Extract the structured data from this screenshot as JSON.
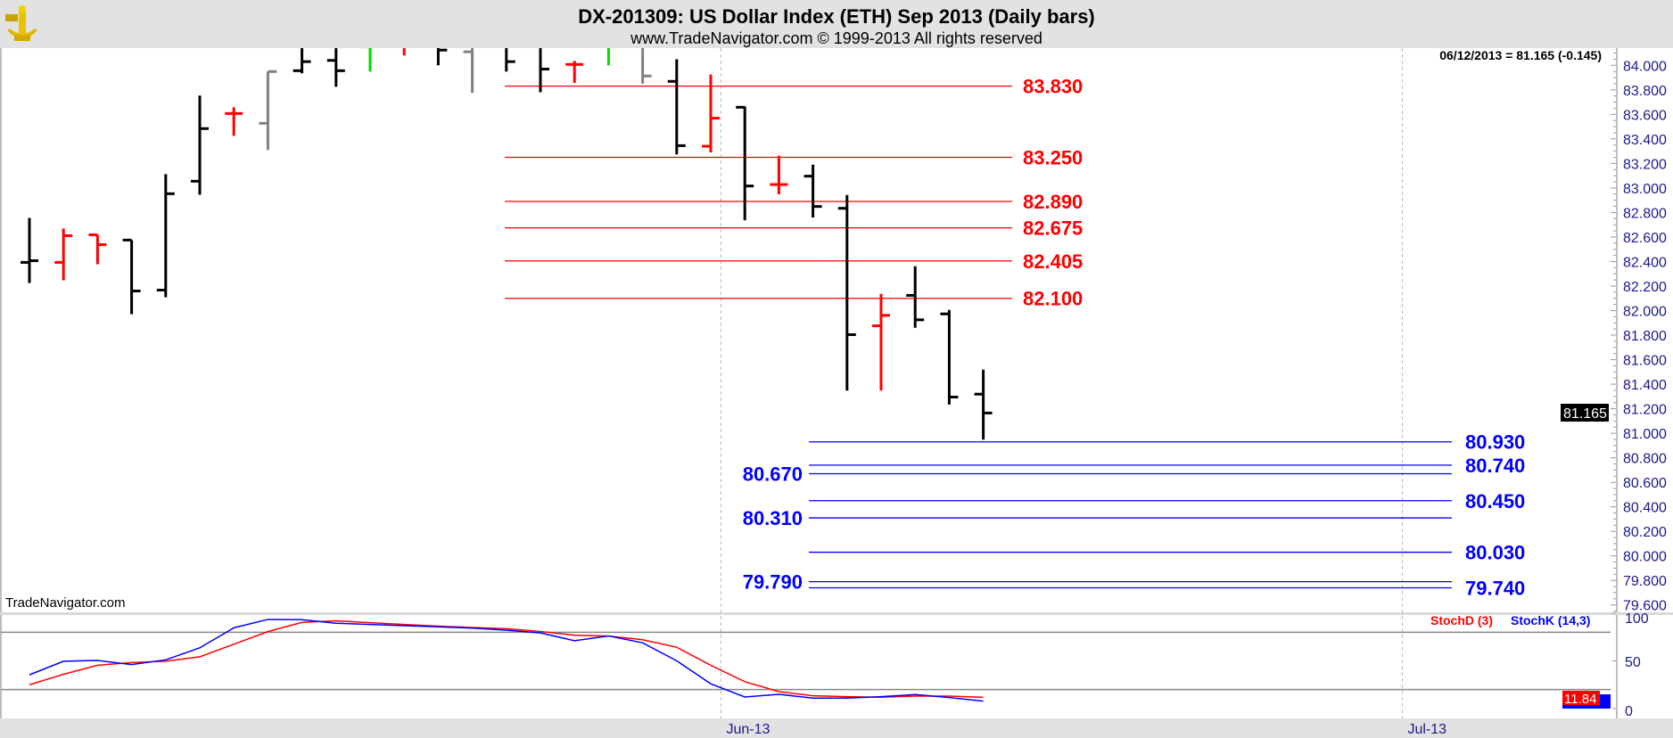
{
  "header": {
    "title": "DX-201309:  US Dollar Index (ETH) Sep 2013  (Daily bars)",
    "subtitle": "www.TradeNavigator.com © 1999-2013 All rights reserved",
    "logo": "sextant-logo"
  },
  "quote_readout": "06/12/2013 = 81.165 (-0.145)",
  "watermark": "TradeNavigator.com",
  "last_price_marker": "81.165",
  "colors": {
    "up": "#000000",
    "down": "#ff0000",
    "neutral": "#808080",
    "green": "#00dd00",
    "resistance": "#ff0000",
    "support": "#0000ff",
    "stoch_d": "#ff0000",
    "stoch_k": "#0000ff"
  },
  "chart_data": [
    {
      "type": "ohlc",
      "title": "DX-201309:  US Dollar Index (ETH) Sep 2013  (Daily bars)",
      "ylim": [
        79.54,
        84.14
      ],
      "yticks": [
        "84.000",
        "83.800",
        "83.600",
        "83.400",
        "83.200",
        "83.000",
        "82.800",
        "82.600",
        "82.400",
        "82.200",
        "82.000",
        "81.800",
        "81.600",
        "81.400",
        "81.200",
        "81.000",
        "80.800",
        "80.600",
        "80.400",
        "80.200",
        "80.000",
        "79.800",
        "79.600"
      ],
      "xticks": [
        {
          "label": "Jun-13",
          "index": 20.3
        },
        {
          "label": "Jul-13",
          "index": 40.3
        }
      ],
      "grid": false,
      "bars": [
        {
          "o": 82.393,
          "h": 82.756,
          "l": 82.225,
          "c": 82.407,
          "color": "black"
        },
        {
          "o": 82.393,
          "h": 82.669,
          "l": 82.247,
          "c": 82.611,
          "color": "red"
        },
        {
          "o": 82.618,
          "h": 82.618,
          "l": 82.378,
          "c": 82.538,
          "color": "red"
        },
        {
          "o": 82.575,
          "h": 82.575,
          "l": 81.971,
          "c": 82.16,
          "color": "black"
        },
        {
          "o": 82.167,
          "h": 83.113,
          "l": 82.109,
          "c": 82.953,
          "color": "black"
        },
        {
          "o": 83.055,
          "h": 83.753,
          "l": 82.945,
          "c": 83.484,
          "color": "black"
        },
        {
          "o": 83.607,
          "h": 83.658,
          "l": 83.425,
          "c": 83.607,
          "color": "red"
        },
        {
          "o": 83.527,
          "h": 83.949,
          "l": 83.31,
          "c": 83.949,
          "color": "gray"
        },
        {
          "o": 83.956,
          "h": 84.3,
          "l": 83.935,
          "c": 84.03,
          "color": "black"
        },
        {
          "o": 84.04,
          "h": 84.3,
          "l": 83.825,
          "c": 83.956,
          "color": "black"
        },
        {
          "o": 84.15,
          "h": 84.3,
          "l": 83.949,
          "c": 84.2,
          "color": "green"
        },
        {
          "o": 84.2,
          "h": 84.3,
          "l": 84.08,
          "c": 84.2,
          "color": "red"
        },
        {
          "o": 84.2,
          "h": 84.3,
          "l": 84.0,
          "c": 84.124,
          "color": "black"
        },
        {
          "o": 84.11,
          "h": 84.3,
          "l": 83.775,
          "c": 84.2,
          "color": "gray"
        },
        {
          "o": 84.2,
          "h": 84.3,
          "l": 83.949,
          "c": 84.03,
          "color": "black"
        },
        {
          "o": 84.2,
          "h": 84.3,
          "l": 83.78,
          "c": 83.969,
          "color": "black"
        },
        {
          "o": 84.007,
          "h": 84.036,
          "l": 83.857,
          "c": 84.007,
          "color": "red"
        },
        {
          "o": 84.2,
          "h": 84.3,
          "l": 84.0,
          "c": 84.2,
          "color": "green"
        },
        {
          "o": 84.2,
          "h": 84.3,
          "l": 83.85,
          "c": 83.913,
          "color": "gray"
        },
        {
          "o": 83.869,
          "h": 84.05,
          "l": 83.273,
          "c": 83.345,
          "color": "black"
        },
        {
          "o": 83.34,
          "h": 83.925,
          "l": 83.29,
          "c": 83.569,
          "color": "red"
        },
        {
          "o": 83.658,
          "h": 83.665,
          "l": 82.737,
          "c": 83.016,
          "color": "black"
        },
        {
          "o": 83.028,
          "h": 83.263,
          "l": 82.948,
          "c": 83.028,
          "color": "red"
        },
        {
          "o": 83.096,
          "h": 83.19,
          "l": 82.759,
          "c": 82.849,
          "color": "black"
        },
        {
          "o": 82.834,
          "h": 82.943,
          "l": 81.348,
          "c": 81.804,
          "color": "black"
        },
        {
          "o": 81.876,
          "h": 82.136,
          "l": 81.348,
          "c": 81.961,
          "color": "red"
        },
        {
          "o": 82.124,
          "h": 82.361,
          "l": 81.86,
          "c": 81.925,
          "color": "black"
        },
        {
          "o": 81.973,
          "h": 82.005,
          "l": 81.234,
          "c": 81.295,
          "color": "black"
        },
        {
          "o": 81.319,
          "h": 81.518,
          "l": 80.948,
          "c": 81.165,
          "color": "black"
        }
      ],
      "resistance_levels": [
        {
          "value": 83.83,
          "label": "83.830"
        },
        {
          "value": 83.25,
          "label": "83.250"
        },
        {
          "value": 82.89,
          "label": "82.890"
        },
        {
          "value": 82.675,
          "label": "82.675"
        },
        {
          "value": 82.405,
          "label": "82.405"
        },
        {
          "value": 82.1,
          "label": "82.100"
        }
      ],
      "support_levels": [
        {
          "value": 80.93,
          "label": "80.930",
          "side": "right"
        },
        {
          "value": 80.74,
          "label": "80.740",
          "side": "right"
        },
        {
          "value": 80.67,
          "label": "80.670",
          "side": "left"
        },
        {
          "value": 80.45,
          "label": "80.450",
          "side": "right"
        },
        {
          "value": 80.31,
          "label": "80.310",
          "side": "left"
        },
        {
          "value": 80.03,
          "label": "80.030",
          "side": "right"
        },
        {
          "value": 79.79,
          "label": "79.790",
          "side": "left"
        },
        {
          "value": 79.74,
          "label": "79.740",
          "side": "right"
        }
      ]
    },
    {
      "type": "line",
      "legend": [
        "StochD (3)",
        "StochK (14,3)"
      ],
      "legend_position": "top-right",
      "ylim": [
        0,
        100
      ],
      "yticks": [
        "100",
        "50",
        "0"
      ],
      "reference_lines": [
        80,
        20
      ],
      "last_value_marker": "11.84",
      "series": [
        {
          "name": "StochD (3)",
          "color": "red",
          "values": [
            25.0,
            36.0,
            45.4,
            48.3,
            49.6,
            54.3,
            67.5,
            80.7,
            90.4,
            92.0,
            90.1,
            88.2,
            86.4,
            85.1,
            83.8,
            80.9,
            76.9,
            76.0,
            72.2,
            64.3,
            45.4,
            28.2,
            17.8,
            13.4,
            12.5,
            11.9,
            13.1,
            13.1,
            11.84
          ]
        },
        {
          "name": "StochK (14,3)",
          "color": "blue",
          "values": [
            35.4,
            49.6,
            50.5,
            46.1,
            51.1,
            63.7,
            84.7,
            93.5,
            93.2,
            89.5,
            88.2,
            86.9,
            85.7,
            84.4,
            82.2,
            79.3,
            71.2,
            76.2,
            69.0,
            50.1,
            26.0,
            12.2,
            15.0,
            11.0,
            11.0,
            12.5,
            14.7,
            11.6,
            7.8
          ]
        }
      ]
    }
  ]
}
